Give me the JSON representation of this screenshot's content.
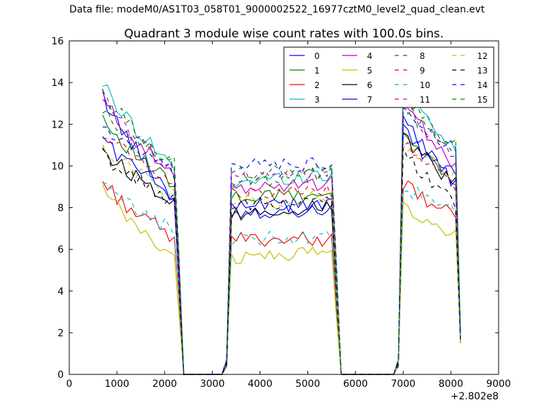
{
  "suptitle": "Data file: modeM0/AS1T03_058T01_9000002522_16977cztM0_level2_quad_clean.evt",
  "chart_data": {
    "type": "line",
    "title": "Quadrant 3 module wise count rates with 100.0s bins.",
    "xlabel": "",
    "ylabel": "",
    "x_offset_label": "+2.802e8",
    "xlim": [
      0,
      9000
    ],
    "ylim": [
      0,
      16
    ],
    "xticks": [
      0,
      1000,
      2000,
      3000,
      4000,
      5000,
      6000,
      7000,
      8000,
      9000
    ],
    "yticks": [
      0,
      2,
      4,
      6,
      8,
      10,
      12,
      14,
      16
    ],
    "grid": false,
    "legend_position": "top-right",
    "legend_columns": 4,
    "segments": [
      {
        "x_start": 700,
        "x_end": 2200,
        "step": 100
      },
      {
        "x_start": 3400,
        "x_end": 5500,
        "step": 100
      },
      {
        "x_start": 7000,
        "x_end": 8100,
        "step": 100
      }
    ],
    "series": [
      {
        "name": "0",
        "color": "#0000ff",
        "dash": "solid",
        "segment_levels": [
          [
            13.5,
            8.5
          ],
          [
            7.8,
            7.9
          ],
          [
            12.2,
            9.5
          ]
        ]
      },
      {
        "name": "1",
        "color": "#008000",
        "dash": "solid",
        "segment_levels": [
          [
            12.4,
            9.0
          ],
          [
            8.5,
            8.6
          ],
          [
            11.6,
            9.4
          ]
        ]
      },
      {
        "name": "2",
        "color": "#ff0000",
        "dash": "solid",
        "segment_levels": [
          [
            9.3,
            6.5
          ],
          [
            6.5,
            6.5
          ],
          [
            9.2,
            7.5
          ]
        ]
      },
      {
        "name": "3",
        "color": "#00bfbf",
        "dash": "solid",
        "segment_levels": [
          [
            14.0,
            10.0
          ],
          [
            9.2,
            9.6
          ],
          [
            14.2,
            10.8
          ]
        ]
      },
      {
        "name": "4",
        "color": "#bf00bf",
        "dash": "solid",
        "segment_levels": [
          [
            13.3,
            9.5
          ],
          [
            8.9,
            9.2
          ],
          [
            13.5,
            10.0
          ]
        ]
      },
      {
        "name": "5",
        "color": "#bfbf00",
        "dash": "solid",
        "segment_levels": [
          [
            8.9,
            5.6
          ],
          [
            5.6,
            5.9
          ],
          [
            8.3,
            6.6
          ]
        ]
      },
      {
        "name": "6",
        "color": "#000000",
        "dash": "solid",
        "segment_levels": [
          [
            10.8,
            8.4
          ],
          [
            7.6,
            8.1
          ],
          [
            11.6,
            9.1
          ]
        ]
      },
      {
        "name": "7",
        "color": "#0000ff",
        "dash": "solid",
        "segment_levels": [
          [
            11.4,
            8.6
          ],
          [
            8.0,
            8.2
          ],
          [
            11.9,
            9.2
          ]
        ]
      },
      {
        "name": "8",
        "color": "#008000",
        "dash": "dashed",
        "segment_levels": [
          [
            13.6,
            10.1
          ],
          [
            9.6,
            9.8
          ],
          [
            13.5,
            10.8
          ]
        ]
      },
      {
        "name": "9",
        "color": "#ff0000",
        "dash": "dashed",
        "segment_levels": [
          [
            11.7,
            9.3
          ],
          [
            8.6,
            8.8
          ],
          [
            11.3,
            9.0
          ]
        ]
      },
      {
        "name": "10",
        "color": "#00bfbf",
        "dash": "dashed",
        "segment_levels": [
          [
            9.1,
            6.9
          ],
          [
            6.4,
            6.7
          ],
          [
            9.0,
            7.8
          ]
        ]
      },
      {
        "name": "11",
        "color": "#bf00bf",
        "dash": "dashed",
        "segment_levels": [
          [
            13.1,
            9.9
          ],
          [
            9.4,
            9.6
          ],
          [
            13.3,
            10.4
          ]
        ]
      },
      {
        "name": "12",
        "color": "#bfbf00",
        "dash": "dashed",
        "segment_levels": [
          [
            11.1,
            8.6
          ],
          [
            8.2,
            8.5
          ],
          [
            10.9,
            9.6
          ]
        ]
      },
      {
        "name": "13",
        "color": "#000000",
        "dash": "dashed",
        "segment_levels": [
          [
            10.6,
            8.3
          ],
          [
            8.1,
            8.3
          ],
          [
            10.9,
            8.2
          ]
        ]
      },
      {
        "name": "14",
        "color": "#0000ff",
        "dash": "dashed",
        "segment_levels": [
          [
            12.0,
            9.6
          ],
          [
            10.0,
            10.1
          ],
          [
            12.7,
            10.7
          ]
        ]
      },
      {
        "name": "15",
        "color": "#008000",
        "dash": "dashed",
        "segment_levels": [
          [
            12.6,
            10.1
          ],
          [
            9.2,
            9.7
          ],
          [
            12.9,
            11.0
          ]
        ]
      }
    ]
  }
}
